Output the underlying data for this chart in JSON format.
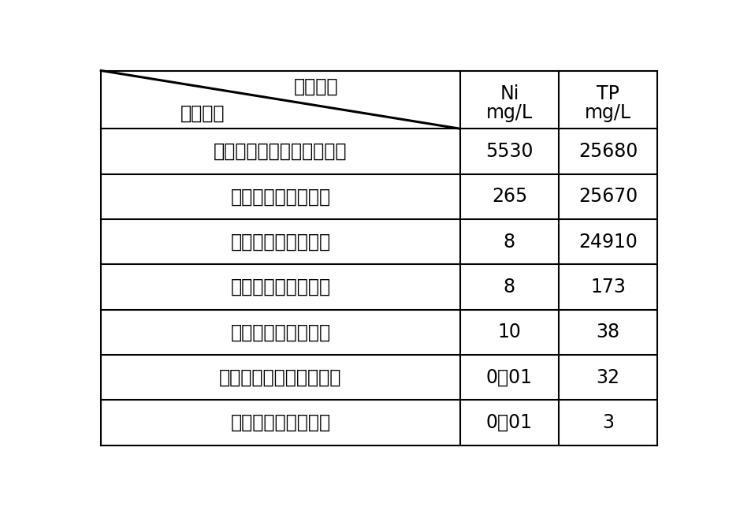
{
  "header_top": "水质指标",
  "header_bottom": "取样位置",
  "header_col2_line1": "Ni",
  "header_col2_line2": "mg/L",
  "header_col3_line1": "TP",
  "header_col3_line2": "mg/L",
  "rows": [
    {
      "label": "化学镍母液收集槽的出液口",
      "ni": "5530",
      "tp": "25680"
    },
    {
      "label": "除镍电解槽的出液口",
      "ni": "265",
      "tp": "25670"
    },
    {
      "label": "除镍压滤机的出液口",
      "ni": "8",
      "tp": "24910"
    },
    {
      "label": "除磷压滤机的出液口",
      "ni": "8",
      "tp": "173"
    },
    {
      "label": "废液收集池的出液口",
      "ni": "10",
      "tp": "38"
    },
    {
      "label": "除镍螯合树脂罐的出液口",
      "ni": "0．01",
      "tp": "32"
    },
    {
      "label": "除磷沉淀池的出液口",
      "ni": "0．01",
      "tp": "3"
    }
  ],
  "bg_color": "#ffffff",
  "line_color": "#000000",
  "text_color": "#000000",
  "fig_width": 9.39,
  "fig_height": 6.43,
  "fontsize": 17
}
